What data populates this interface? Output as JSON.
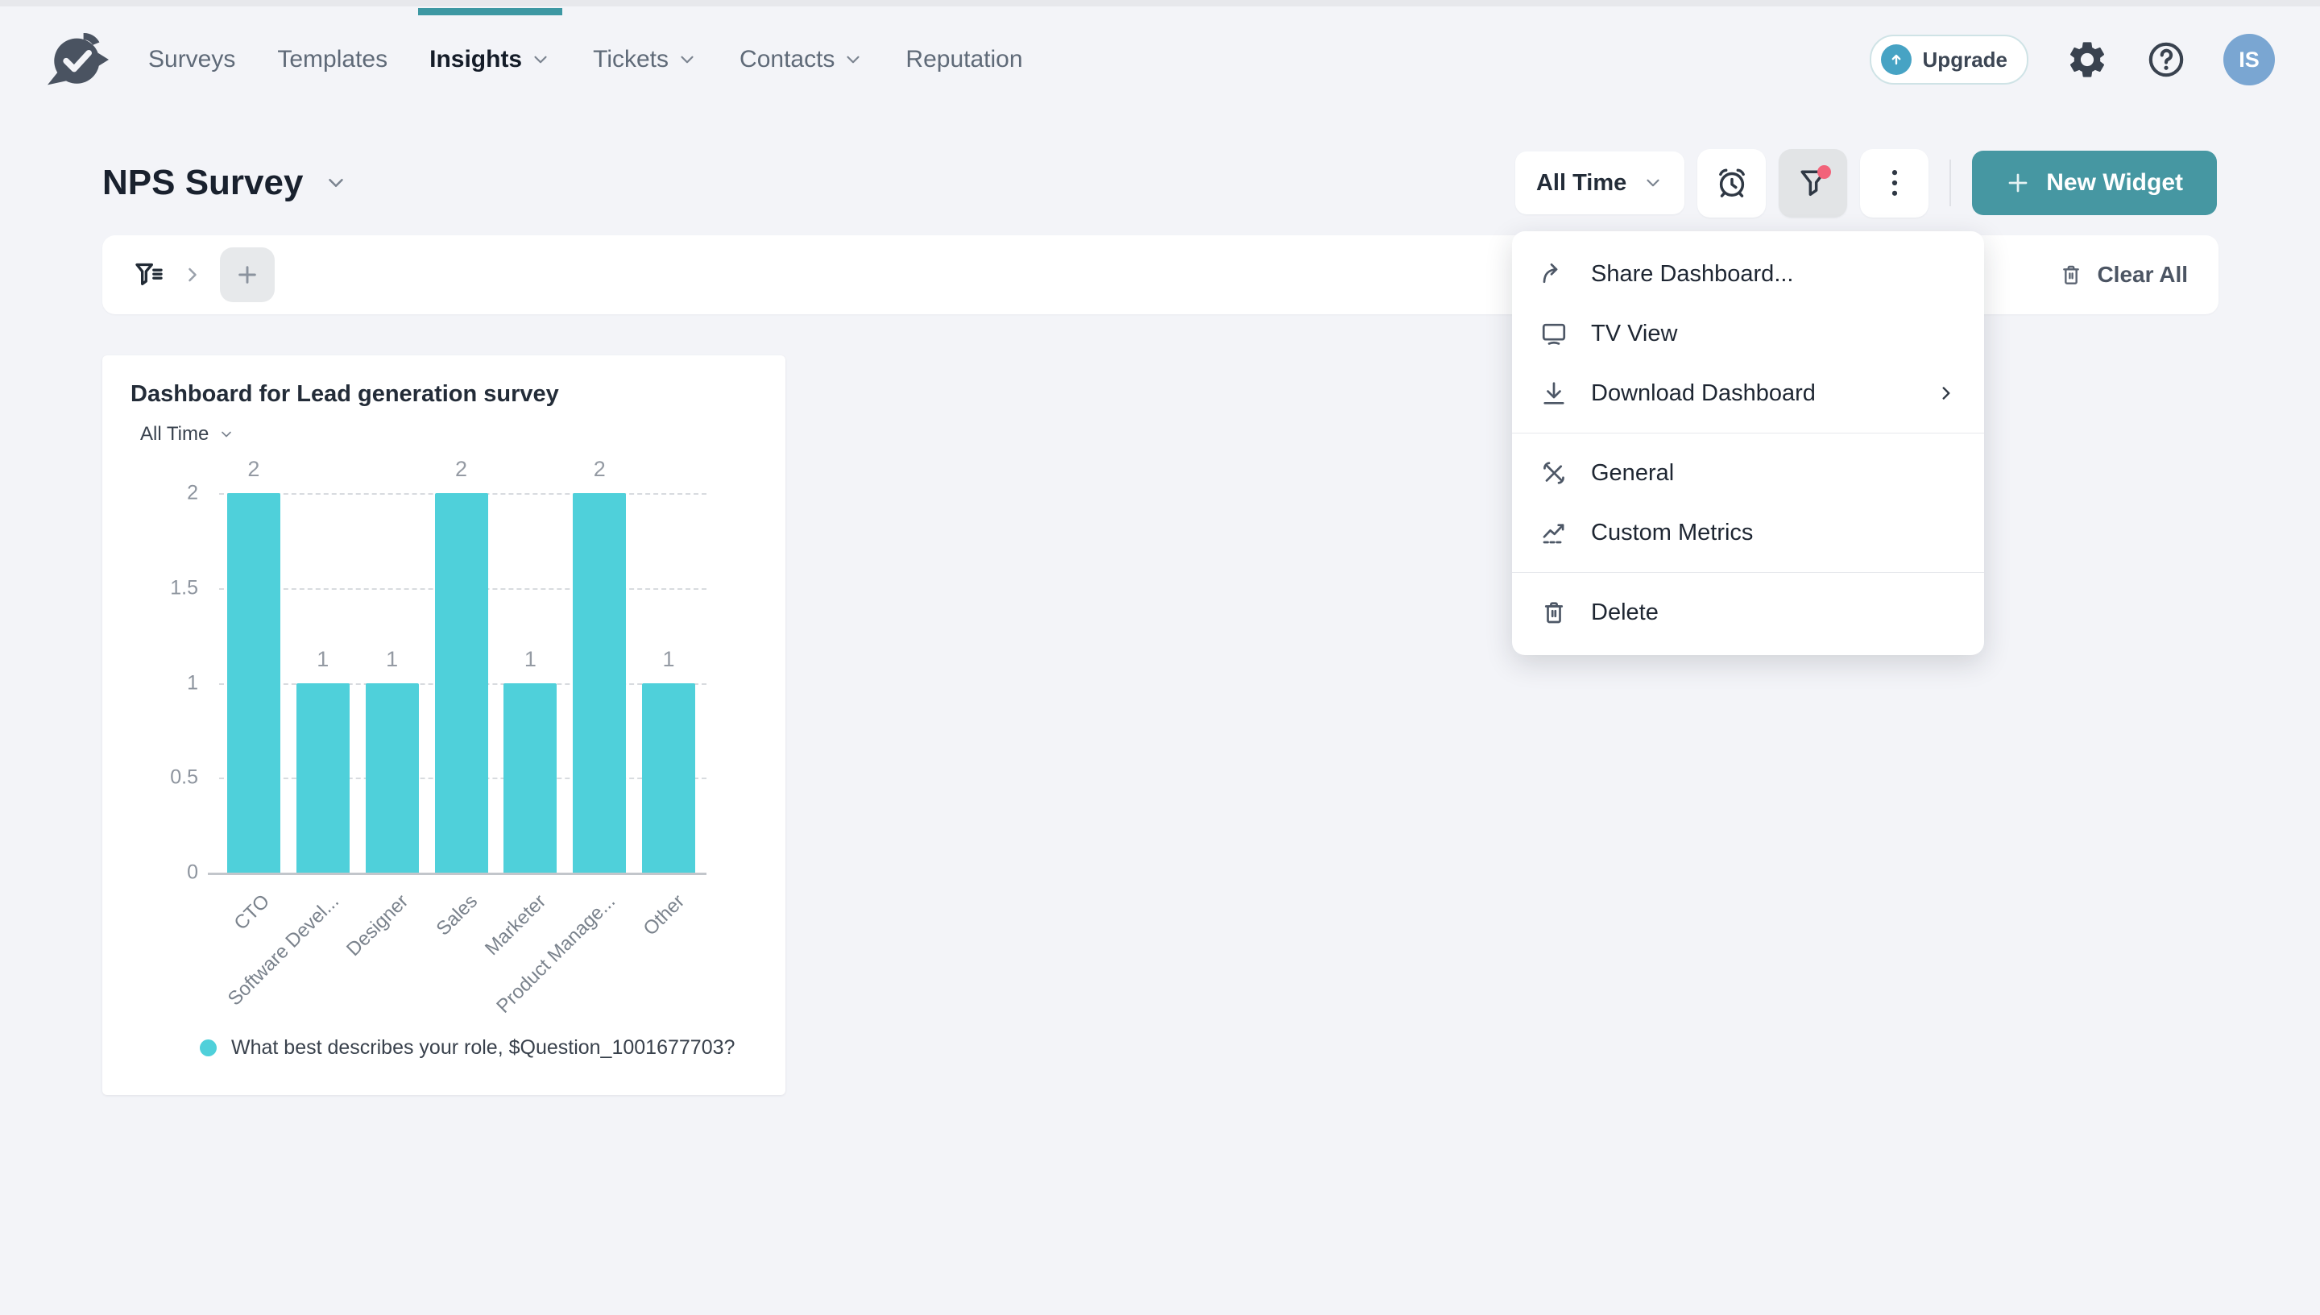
{
  "nav": {
    "items": [
      {
        "label": "Surveys",
        "dropdown": false,
        "active": false
      },
      {
        "label": "Templates",
        "dropdown": false,
        "active": false
      },
      {
        "label": "Insights",
        "dropdown": true,
        "active": true
      },
      {
        "label": "Tickets",
        "dropdown": true,
        "active": false
      },
      {
        "label": "Contacts",
        "dropdown": true,
        "active": false
      },
      {
        "label": "Reputation",
        "dropdown": false,
        "active": false
      }
    ],
    "upgrade_label": "Upgrade",
    "avatar_initials": "IS",
    "header_icons": [
      "upgrade-icon",
      "gear-icon",
      "help-icon"
    ]
  },
  "page": {
    "title": "NPS Survey",
    "time_filter": "All Time",
    "new_widget_label": "New Widget",
    "clear_all_label": "Clear All",
    "toolbar_icons": [
      "schedule-icon",
      "filter-icon",
      "more-options-icon"
    ]
  },
  "menu": {
    "groups": [
      {
        "items": [
          {
            "icon": "share-icon",
            "label": "Share Dashboard...",
            "submenu": false
          },
          {
            "icon": "tv-icon",
            "label": "TV View",
            "submenu": false
          },
          {
            "icon": "download-icon",
            "label": "Download Dashboard",
            "submenu": true
          }
        ]
      },
      {
        "items": [
          {
            "icon": "tools-icon",
            "label": "General",
            "submenu": false
          },
          {
            "icon": "metrics-icon",
            "label": "Custom Metrics",
            "submenu": false
          }
        ]
      },
      {
        "items": [
          {
            "icon": "trash-icon",
            "label": "Delete",
            "submenu": false
          }
        ]
      }
    ]
  },
  "widget": {
    "title": "Dashboard for Lead generation survey",
    "time_filter": "All Time",
    "legend": "What best describes your role, $Question_1001677703?"
  },
  "chart_data": {
    "type": "bar",
    "categories": [
      "CTO",
      "Software Devel...",
      "Designer",
      "Sales",
      "Marketer",
      "Product Manage...",
      "Other"
    ],
    "values": [
      2,
      1,
      1,
      2,
      1,
      2,
      1
    ],
    "yticks": [
      0,
      0.5,
      1,
      1.5,
      2
    ],
    "ylim": [
      0,
      2
    ],
    "title": "",
    "xlabel": "",
    "ylabel": "",
    "grid": "dashed-horizontal",
    "bar_color": "#4fd0da",
    "legend_position": "bottom",
    "legend_entries": [
      "What best describes your role, $Question_1001677703?"
    ]
  },
  "colors": {
    "accent_teal": "#4697a2",
    "tab_indicator": "#3d98a3",
    "bar_cyan": "#4fd0da",
    "alert_red": "#f2637a",
    "avatar_blue": "#7aa6d2",
    "background": "#f3f4f8"
  }
}
